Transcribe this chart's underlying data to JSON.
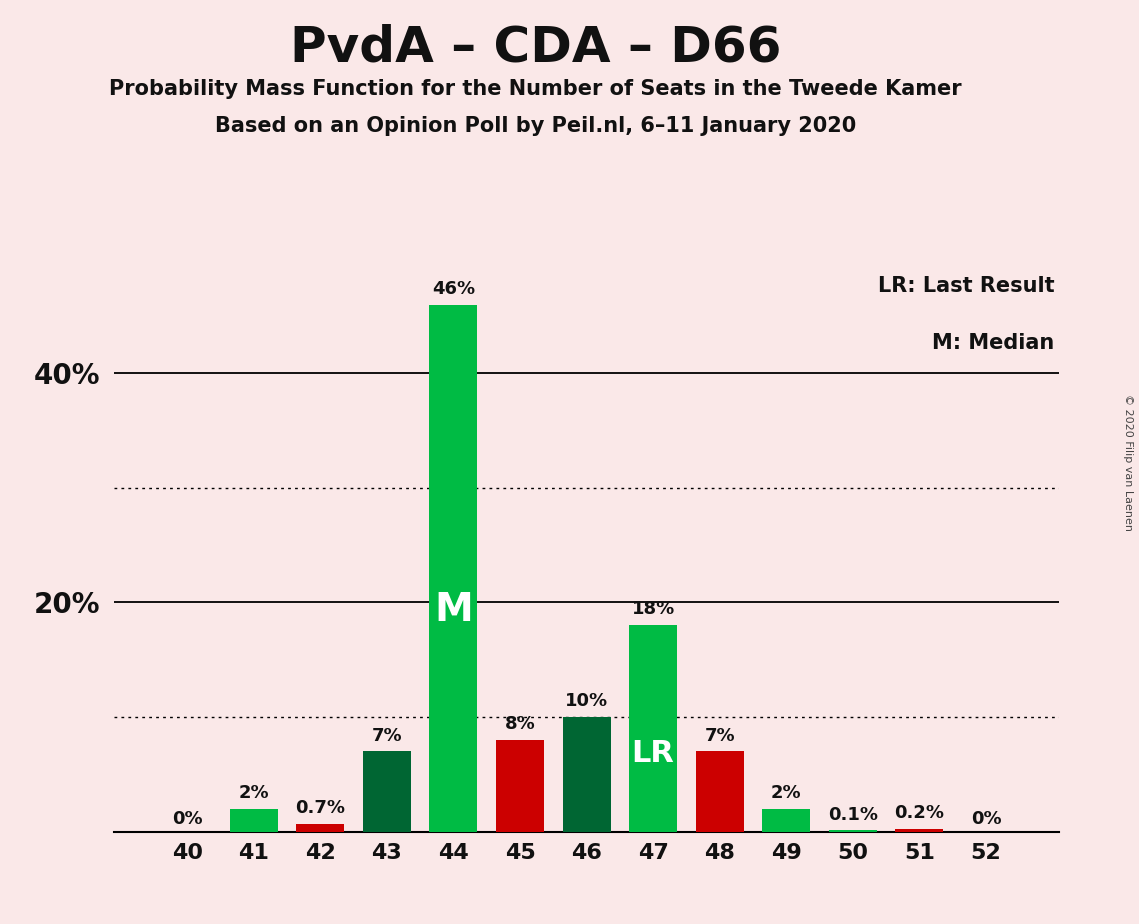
{
  "title": "PvdA – CDA – D66",
  "subtitle1": "Probability Mass Function for the Number of Seats in the Tweede Kamer",
  "subtitle2": "Based on an Opinion Poll by Peil.nl, 6–11 January 2020",
  "copyright": "© 2020 Filip van Laenen",
  "legend_lr": "LR: Last Result",
  "legend_m": "M: Median",
  "categories": [
    40,
    41,
    42,
    43,
    44,
    45,
    46,
    47,
    48,
    49,
    50,
    51,
    52
  ],
  "values": [
    0.0,
    2.0,
    0.7,
    7.0,
    46.0,
    8.0,
    10.0,
    18.0,
    7.0,
    2.0,
    0.1,
    0.2,
    0.0
  ],
  "bar_colors": [
    "#00BB44",
    "#00BB44",
    "#CC0000",
    "#006633",
    "#00BB44",
    "#CC0000",
    "#006633",
    "#00BB44",
    "#CC0000",
    "#00BB44",
    "#00BB44",
    "#CC0000",
    "#00BB44"
  ],
  "labels": [
    "0%",
    "2%",
    "0.7%",
    "7%",
    "46%",
    "8%",
    "10%",
    "18%",
    "7%",
    "2%",
    "0.1%",
    "0.2%",
    "0%"
  ],
  "median_seat": 44,
  "lr_seat": 47,
  "background_color": "#FAE8E8",
  "solid_gridlines": [
    20,
    40
  ],
  "dotted_gridlines": [
    10,
    30
  ],
  "bar_width": 0.72
}
